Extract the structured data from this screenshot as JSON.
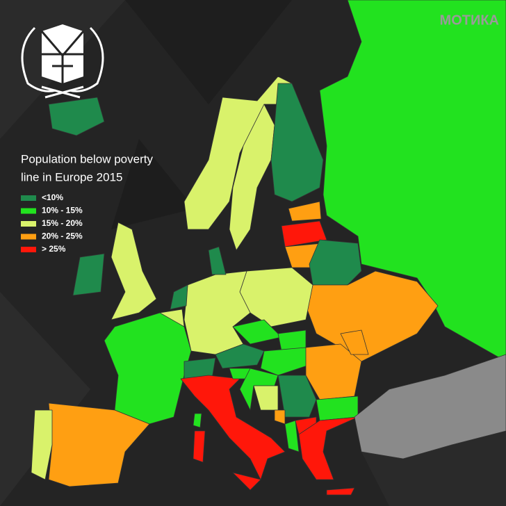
{
  "watermark": "МОТИКА",
  "title_lines": [
    "Population below poverty",
    "line in Europe  2015"
  ],
  "legend": [
    {
      "label": "<10%",
      "color": "#1f8a4c"
    },
    {
      "label": "10% - 15%",
      "color": "#22e21f"
    },
    {
      "label": "15% - 20%",
      "color": "#d9f26b"
    },
    {
      "label": "20% - 25%",
      "color": "#ff9f12"
    },
    {
      "label": "> 25%",
      "color": "#ff170a"
    }
  ]
}
